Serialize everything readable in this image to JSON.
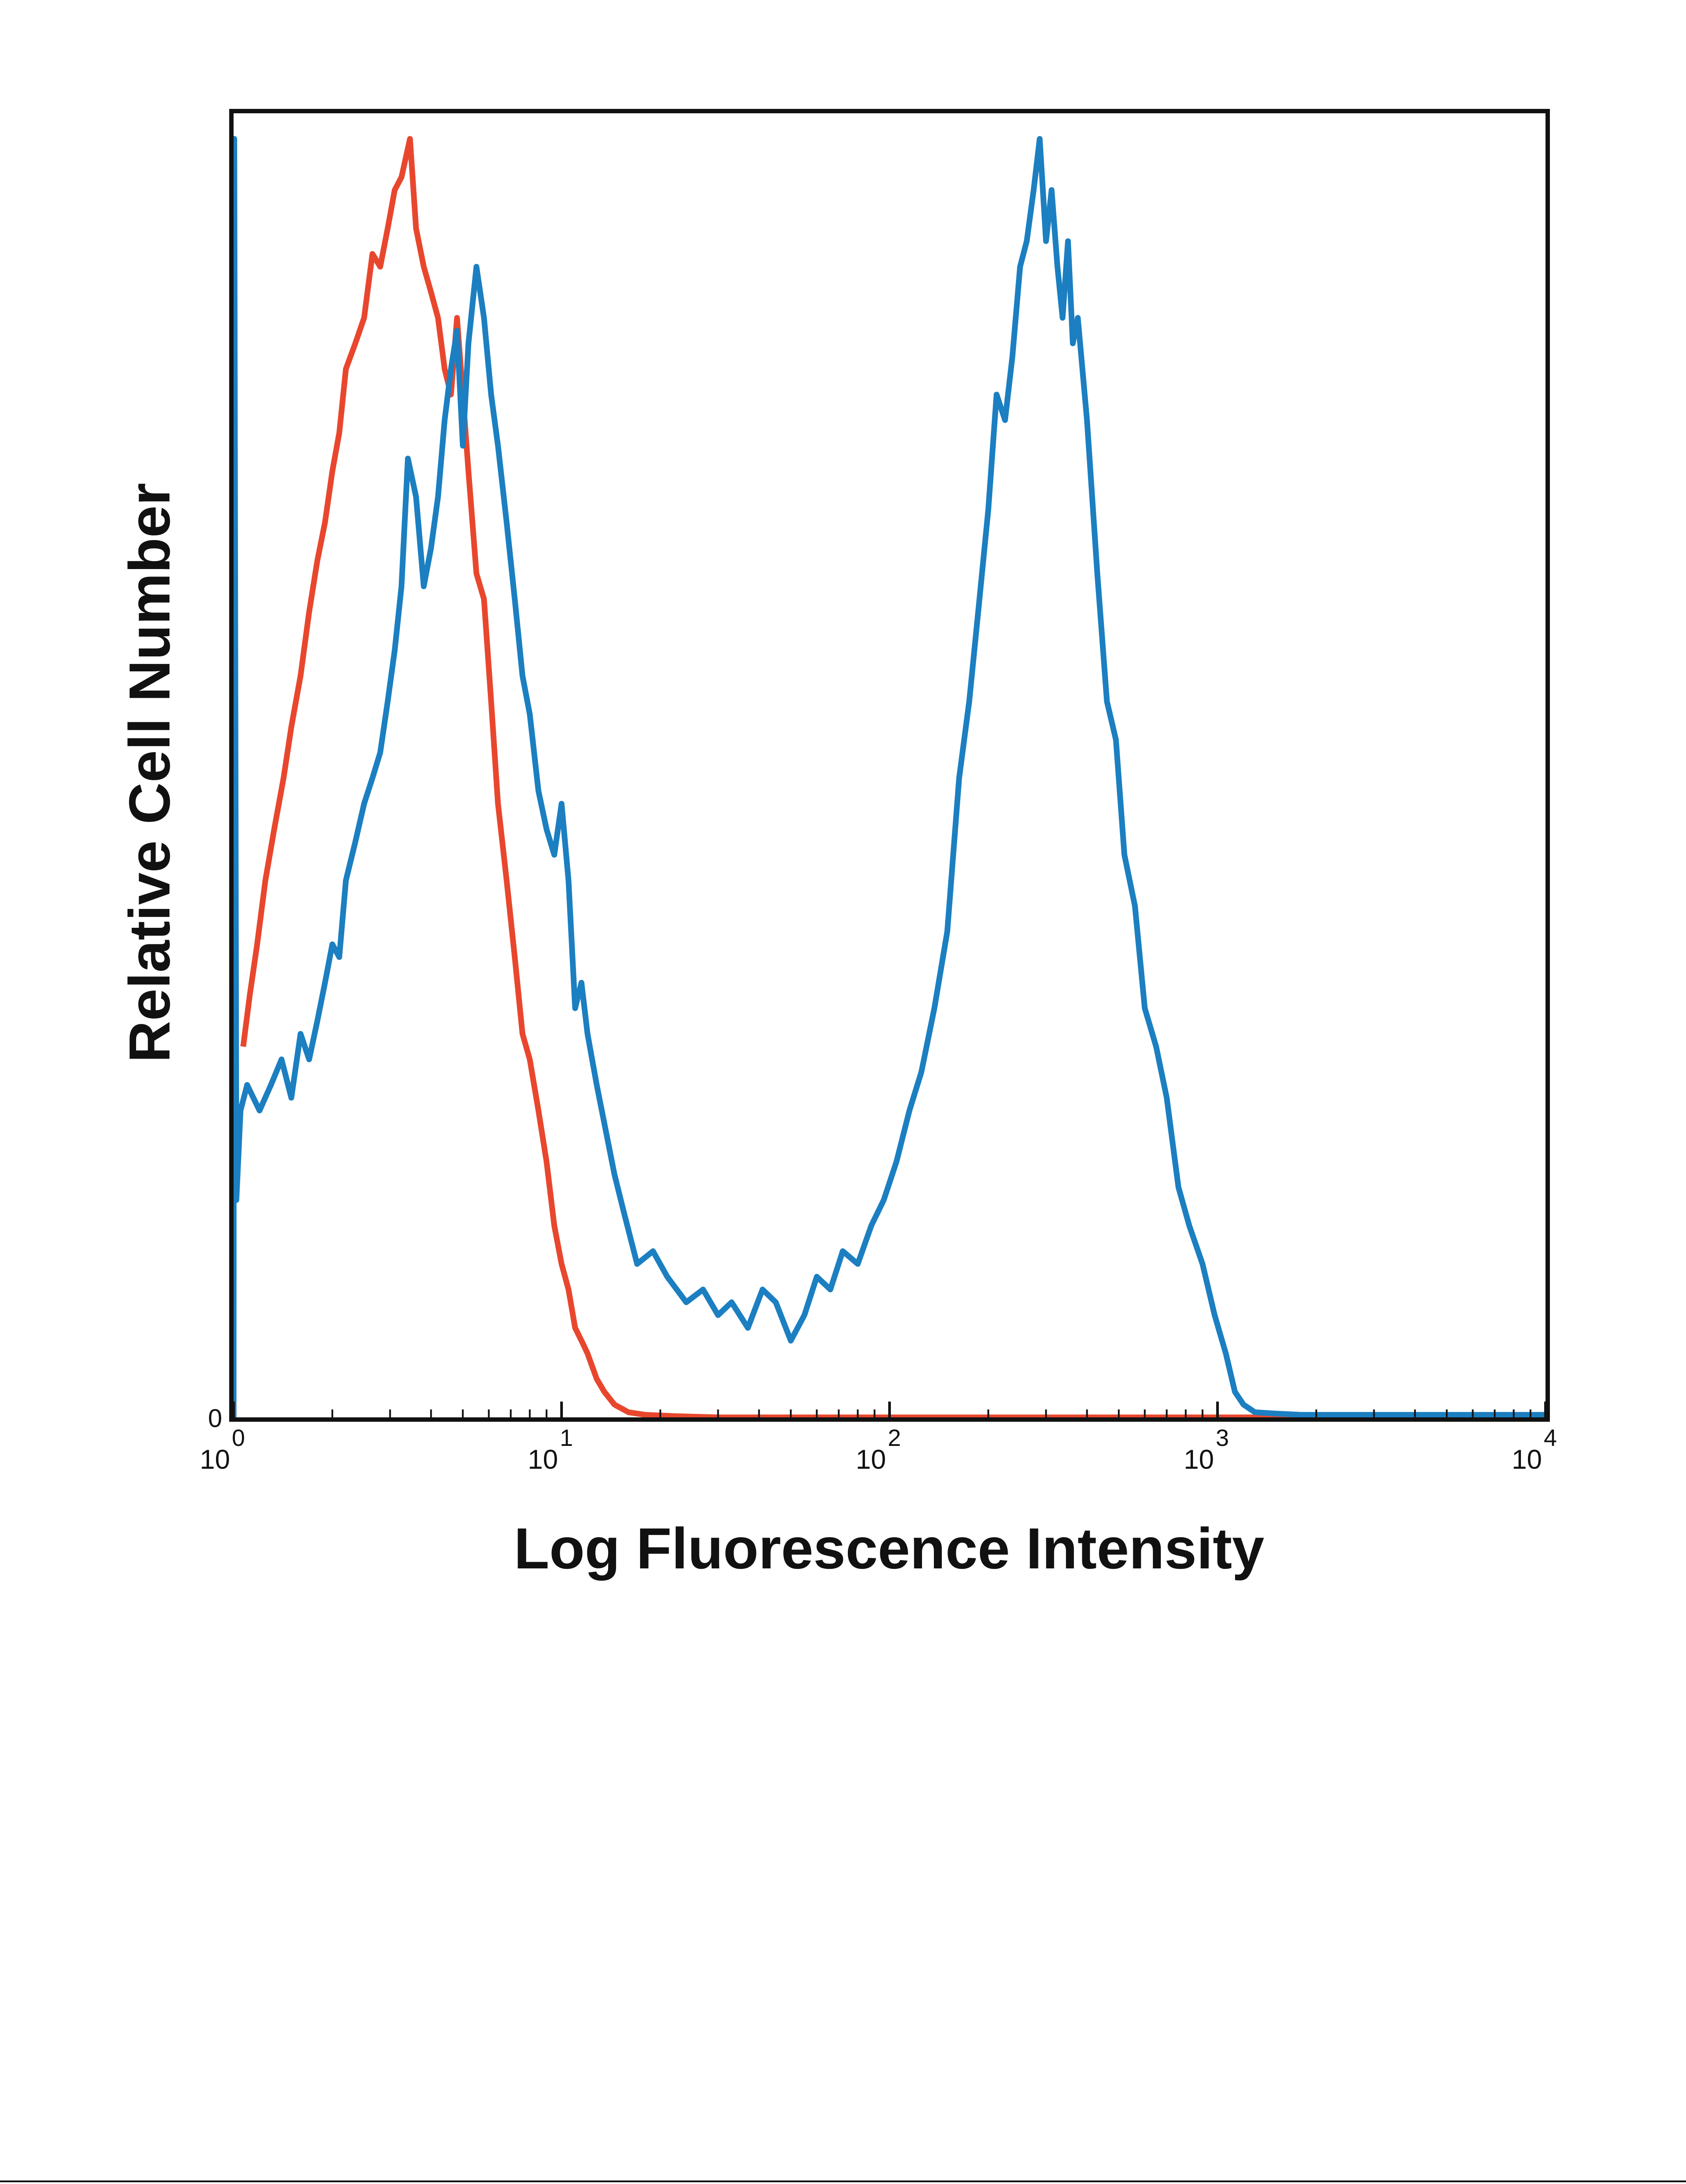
{
  "chart_data": {
    "type": "line",
    "title": "",
    "xlabel": "Log Fluorescence Intensity",
    "ylabel": "Relative Cell Number",
    "x_scale": "log",
    "xlim": [
      1,
      10000
    ],
    "ylim": [
      0,
      1.02
    ],
    "x_ticks": [
      {
        "value": 1,
        "base": "10",
        "exp": "0"
      },
      {
        "value": 10,
        "base": "10",
        "exp": "1"
      },
      {
        "value": 100,
        "base": "10",
        "exp": "2"
      },
      {
        "value": 1000,
        "base": "10",
        "exp": "3"
      },
      {
        "value": 10000,
        "base": "10",
        "exp": "4"
      }
    ],
    "y_ticks": [
      {
        "value": 0,
        "label": "0"
      }
    ],
    "grid": false,
    "legend": "none",
    "series": [
      {
        "color": "#e8472e",
        "points": [
          [
            1.07,
            0.29
          ],
          [
            1.12,
            0.33
          ],
          [
            1.18,
            0.37
          ],
          [
            1.25,
            0.42
          ],
          [
            1.33,
            0.46
          ],
          [
            1.42,
            0.5
          ],
          [
            1.5,
            0.54
          ],
          [
            1.6,
            0.58
          ],
          [
            1.7,
            0.63
          ],
          [
            1.8,
            0.67
          ],
          [
            1.9,
            0.7
          ],
          [
            2.0,
            0.74
          ],
          [
            2.1,
            0.77
          ],
          [
            2.2,
            0.82
          ],
          [
            2.35,
            0.84
          ],
          [
            2.5,
            0.86
          ],
          [
            2.65,
            0.91
          ],
          [
            2.8,
            0.9
          ],
          [
            2.95,
            0.93
          ],
          [
            3.1,
            0.96
          ],
          [
            3.25,
            0.97
          ],
          [
            3.45,
            1.0
          ],
          [
            3.6,
            0.93
          ],
          [
            3.8,
            0.9
          ],
          [
            4.0,
            0.88
          ],
          [
            4.2,
            0.86
          ],
          [
            4.4,
            0.82
          ],
          [
            4.6,
            0.8
          ],
          [
            4.8,
            0.86
          ],
          [
            5.0,
            0.8
          ],
          [
            5.2,
            0.74
          ],
          [
            5.5,
            0.66
          ],
          [
            5.8,
            0.64
          ],
          [
            6.1,
            0.56
          ],
          [
            6.4,
            0.48
          ],
          [
            6.8,
            0.42
          ],
          [
            7.2,
            0.36
          ],
          [
            7.6,
            0.3
          ],
          [
            8.0,
            0.28
          ],
          [
            8.5,
            0.24
          ],
          [
            9.0,
            0.2
          ],
          [
            9.5,
            0.15
          ],
          [
            10.0,
            0.12
          ],
          [
            10.5,
            0.1
          ],
          [
            11.0,
            0.07
          ],
          [
            11.5,
            0.06
          ],
          [
            12.0,
            0.05
          ],
          [
            12.8,
            0.03
          ],
          [
            13.5,
            0.02
          ],
          [
            14.5,
            0.01
          ],
          [
            16,
            0.004
          ],
          [
            18,
            0.002
          ],
          [
            22,
            0.001
          ],
          [
            30,
            0.0
          ],
          [
            100,
            0.0
          ],
          [
            1000,
            0.0
          ],
          [
            10000,
            0.0
          ]
        ]
      },
      {
        "color": "#1b7fc1",
        "points": [
          [
            1.0,
            0.0
          ],
          [
            1.005,
            1.0
          ],
          [
            1.02,
            0.17
          ],
          [
            1.05,
            0.24
          ],
          [
            1.1,
            0.26
          ],
          [
            1.2,
            0.24
          ],
          [
            1.3,
            0.26
          ],
          [
            1.4,
            0.28
          ],
          [
            1.5,
            0.25
          ],
          [
            1.6,
            0.3
          ],
          [
            1.7,
            0.28
          ],
          [
            1.8,
            0.31
          ],
          [
            1.9,
            0.34
          ],
          [
            2.0,
            0.37
          ],
          [
            2.1,
            0.36
          ],
          [
            2.2,
            0.42
          ],
          [
            2.35,
            0.45
          ],
          [
            2.5,
            0.48
          ],
          [
            2.65,
            0.5
          ],
          [
            2.8,
            0.52
          ],
          [
            2.95,
            0.56
          ],
          [
            3.1,
            0.6
          ],
          [
            3.25,
            0.65
          ],
          [
            3.4,
            0.75
          ],
          [
            3.6,
            0.72
          ],
          [
            3.8,
            0.65
          ],
          [
            4.0,
            0.68
          ],
          [
            4.2,
            0.72
          ],
          [
            4.4,
            0.78
          ],
          [
            4.6,
            0.82
          ],
          [
            4.8,
            0.85
          ],
          [
            5.0,
            0.76
          ],
          [
            5.2,
            0.84
          ],
          [
            5.5,
            0.9
          ],
          [
            5.8,
            0.86
          ],
          [
            6.1,
            0.8
          ],
          [
            6.4,
            0.76
          ],
          [
            6.8,
            0.7
          ],
          [
            7.2,
            0.64
          ],
          [
            7.6,
            0.58
          ],
          [
            8.0,
            0.55
          ],
          [
            8.5,
            0.49
          ],
          [
            9.0,
            0.46
          ],
          [
            9.5,
            0.44
          ],
          [
            10.0,
            0.48
          ],
          [
            10.5,
            0.42
          ],
          [
            11.0,
            0.32
          ],
          [
            11.5,
            0.34
          ],
          [
            12.0,
            0.3
          ],
          [
            12.8,
            0.26
          ],
          [
            13.5,
            0.23
          ],
          [
            14.5,
            0.19
          ],
          [
            15.5,
            0.16
          ],
          [
            17,
            0.12
          ],
          [
            19,
            0.13
          ],
          [
            21,
            0.11
          ],
          [
            24,
            0.09
          ],
          [
            27,
            0.1
          ],
          [
            30,
            0.08
          ],
          [
            33,
            0.09
          ],
          [
            37,
            0.07
          ],
          [
            41,
            0.1
          ],
          [
            45,
            0.09
          ],
          [
            50,
            0.06
          ],
          [
            55,
            0.08
          ],
          [
            60,
            0.11
          ],
          [
            66,
            0.1
          ],
          [
            72,
            0.13
          ],
          [
            80,
            0.12
          ],
          [
            88,
            0.15
          ],
          [
            96,
            0.17
          ],
          [
            105,
            0.2
          ],
          [
            115,
            0.24
          ],
          [
            125,
            0.27
          ],
          [
            137,
            0.32
          ],
          [
            150,
            0.38
          ],
          [
            163,
            0.5
          ],
          [
            175,
            0.56
          ],
          [
            188,
            0.64
          ],
          [
            200,
            0.71
          ],
          [
            212,
            0.8
          ],
          [
            225,
            0.78
          ],
          [
            237,
            0.83
          ],
          [
            250,
            0.9
          ],
          [
            262,
            0.92
          ],
          [
            275,
            0.96
          ],
          [
            287,
            1.0
          ],
          [
            300,
            0.92
          ],
          [
            312,
            0.96
          ],
          [
            325,
            0.9
          ],
          [
            337,
            0.86
          ],
          [
            350,
            0.92
          ],
          [
            362,
            0.84
          ],
          [
            375,
            0.86
          ],
          [
            400,
            0.78
          ],
          [
            430,
            0.66
          ],
          [
            460,
            0.56
          ],
          [
            490,
            0.53
          ],
          [
            520,
            0.44
          ],
          [
            560,
            0.4
          ],
          [
            600,
            0.32
          ],
          [
            650,
            0.29
          ],
          [
            700,
            0.25
          ],
          [
            760,
            0.18
          ],
          [
            820,
            0.15
          ],
          [
            900,
            0.12
          ],
          [
            980,
            0.08
          ],
          [
            1060,
            0.05
          ],
          [
            1130,
            0.02
          ],
          [
            1200,
            0.01
          ],
          [
            1300,
            0.004
          ],
          [
            1500,
            0.003
          ],
          [
            1800,
            0.002
          ],
          [
            2500,
            0.002
          ],
          [
            4000,
            0.002
          ],
          [
            10000,
            0.002
          ]
        ]
      }
    ]
  }
}
